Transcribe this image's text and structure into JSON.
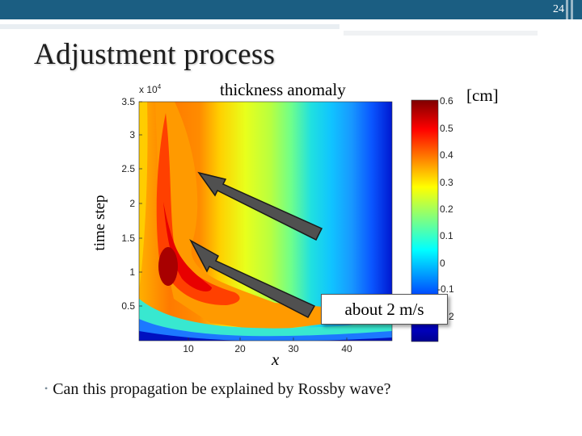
{
  "slide": {
    "page_number": "24",
    "title": "Adjustment process",
    "bullet": "Can this propagation be explained by Rossby wave?"
  },
  "figure": {
    "plot_title": "thickness anomaly",
    "unit_label": "[cm]",
    "ylabel": "time step",
    "xlabel": "x",
    "exponent_base": "x 10",
    "exponent_power": "4",
    "callout": "about 2 m/s"
  },
  "chart_data": {
    "type": "heatmap",
    "title": "thickness anomaly",
    "xlabel": "x",
    "ylabel": "time step",
    "y_scale_factor": "x 10^4",
    "x_ticks": [
      "10",
      "20",
      "30",
      "40"
    ],
    "y_ticks": [
      "0.5",
      "1",
      "1.5",
      "2",
      "2.5",
      "3",
      "3.5"
    ],
    "xlim": [
      1,
      48
    ],
    "ylim": [
      0,
      3.6
    ],
    "colorbar": {
      "label": "[cm]",
      "ticks": [
        "0.6",
        "0.5",
        "0.4",
        "0.3",
        "0.2",
        "0.1",
        "0",
        "-0.1",
        "-0.2"
      ],
      "range": [
        -0.2,
        0.6
      ],
      "colormap": "jet"
    },
    "annotation": "about 2 m/s"
  }
}
